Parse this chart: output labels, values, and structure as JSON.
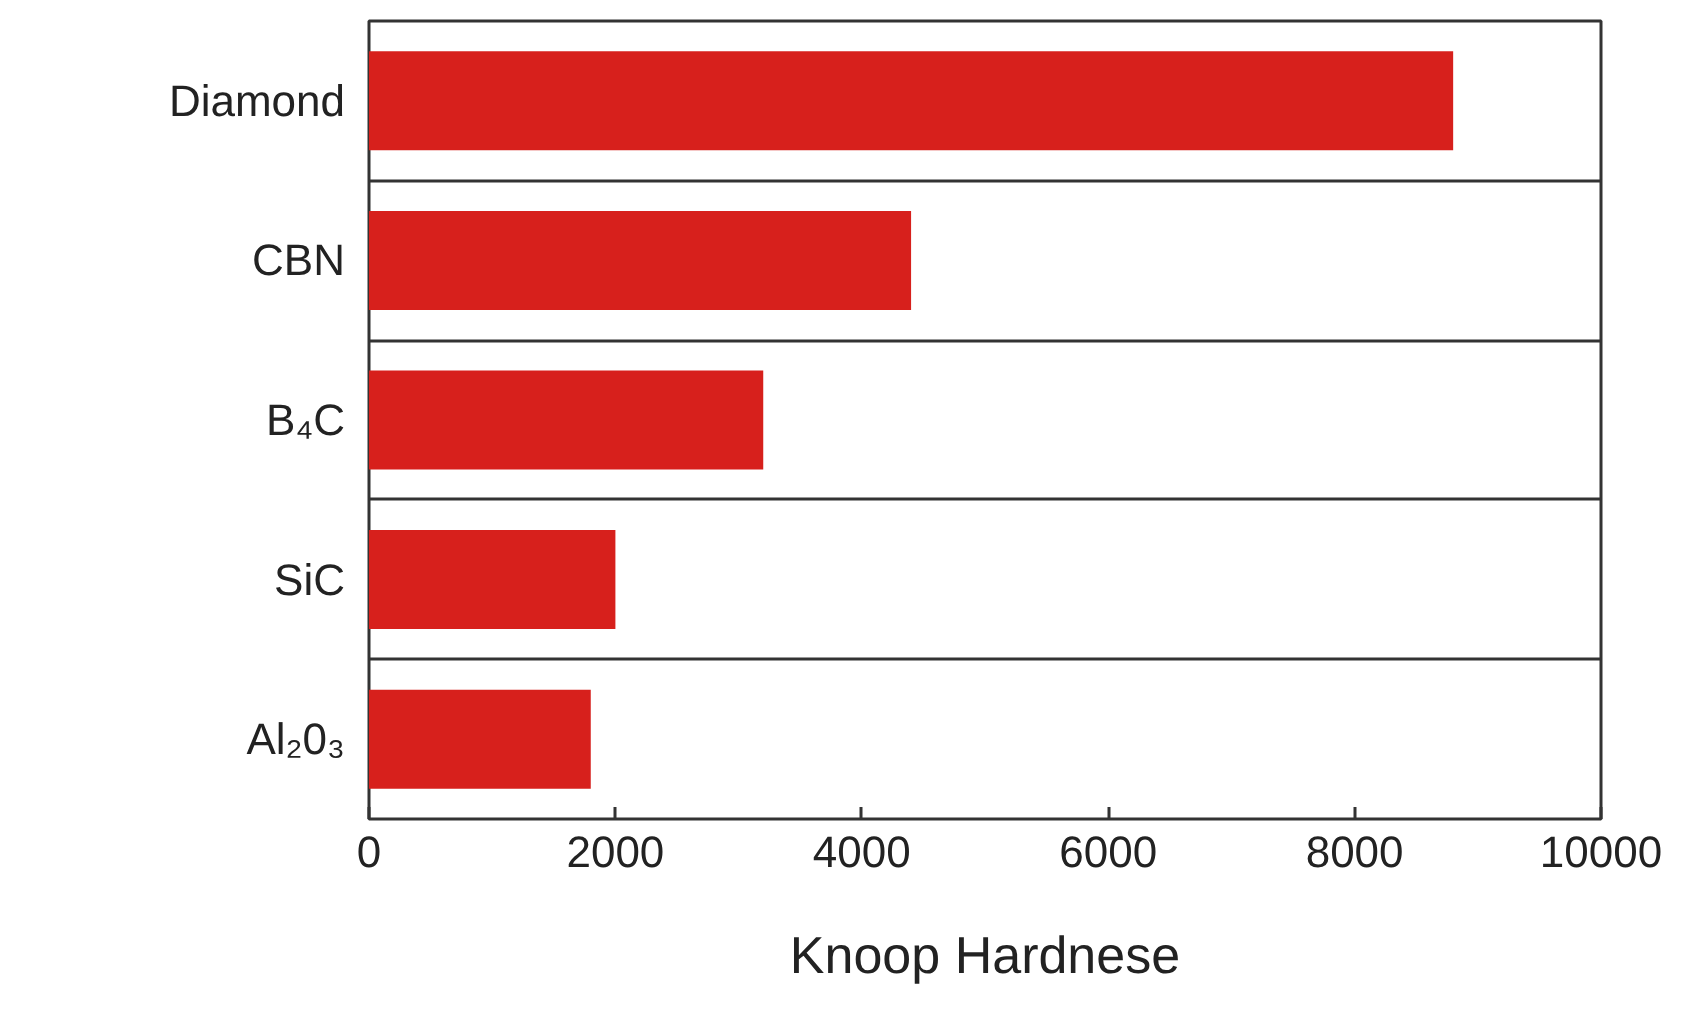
{
  "chart_data": {
    "type": "bar",
    "orientation": "horizontal",
    "categories": [
      "Diamond",
      "CBN",
      "B₄C",
      "SiC",
      "Al₂0₃"
    ],
    "values": [
      8800,
      4400,
      3200,
      2000,
      1800
    ],
    "color": "#d7201c",
    "xlabel": "Knoop Hardnese",
    "xlim": [
      0,
      10000
    ],
    "xticks": [
      0,
      2000,
      4000,
      6000,
      8000,
      10000
    ],
    "grid": "y"
  }
}
